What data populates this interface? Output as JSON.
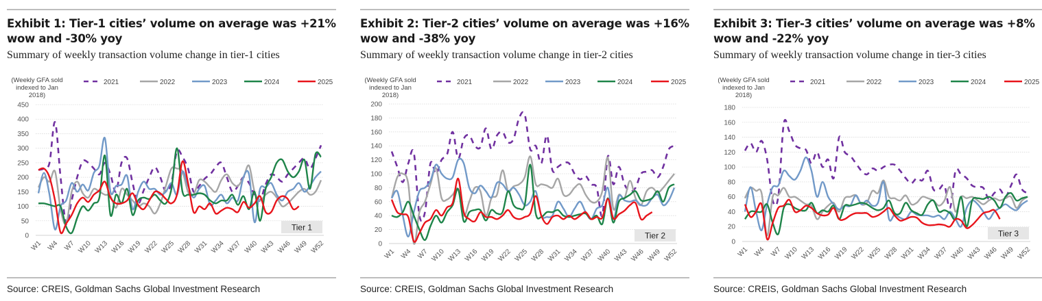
{
  "source": "Source: CREIS, Goldman Sachs Global Investment Research",
  "legend": [
    {
      "label": "2021",
      "color": "#7030a0",
      "dash": true
    },
    {
      "label": "2022",
      "color": "#a6a6a6",
      "dash": false
    },
    {
      "label": "2023",
      "color": "#7199c8",
      "dash": false
    },
    {
      "label": "2024",
      "color": "#1e8449",
      "dash": false
    },
    {
      "label": "2025",
      "color": "#e8141b",
      "dash": false
    }
  ],
  "y_label_lines": [
    "(Weekly GFA sold",
    "indexed to Jan",
    "2018)"
  ],
  "chart_data": [
    {
      "type": "line",
      "title": "Exhibit 1: Tier-1 cities’ volume on average was +21% wow and -30% yoy",
      "subtitle": "Summary of weekly transaction volume change in tier-1 cities",
      "tier_label": "Tier 1",
      "ylim": [
        0,
        450
      ],
      "yticks": [
        0,
        50,
        100,
        150,
        200,
        250,
        300,
        350,
        400,
        450
      ],
      "xticks": [
        "W1",
        "W4",
        "W7",
        "W10",
        "W13",
        "W16",
        "W19",
        "W22",
        "W25",
        "W28",
        "W31",
        "W34",
        "W37",
        "W40",
        "W43",
        "W46",
        "W49",
        "W52"
      ],
      "x": "W1..W52",
      "series": [
        {
          "name": "2021",
          "values": [
            225,
            230,
            250,
            390,
            200,
            40,
            120,
            200,
            255,
            250,
            230,
            210,
            250,
            210,
            150,
            250,
            265,
            180,
            110,
            155,
            200,
            235,
            200,
            150,
            180,
            290,
            270,
            230,
            150,
            170,
            195,
            210,
            235,
            250,
            200,
            150,
            170,
            200,
            180,
            140,
            120,
            175,
            210,
            200,
            185,
            210,
            230,
            250,
            265,
            230,
            265,
            310
          ]
        },
        {
          "name": "2022",
          "values": [
            165,
            200,
            185,
            220,
            90,
            40,
            150,
            185,
            145,
            130,
            160,
            150,
            140,
            135,
            95,
            160,
            140,
            120,
            100,
            110,
            100,
            75,
            110,
            170,
            230,
            230,
            220,
            150,
            140,
            190,
            185,
            165,
            150,
            190,
            210,
            180,
            170,
            200,
            240,
            150,
            120,
            140,
            150,
            130,
            100,
            110,
            130,
            150,
            160,
            140,
            150,
            190
          ]
        },
        {
          "name": "2023",
          "values": [
            145,
            215,
            140,
            20,
            100,
            120,
            180,
            150,
            175,
            155,
            215,
            240,
            335,
            150,
            170,
            175,
            205,
            90,
            150,
            185,
            160,
            160,
            140,
            150,
            180,
            140,
            220,
            170,
            130,
            160,
            170,
            105,
            120,
            140,
            110,
            130,
            120,
            200,
            210,
            45,
            160,
            165,
            180,
            140,
            120,
            150,
            160,
            180,
            150,
            170,
            200,
            220
          ]
        },
        {
          "name": "2024",
          "values": [
            110,
            110,
            105,
            100,
            100,
            30,
            8,
            60,
            100,
            85,
            110,
            130,
            275,
            70,
            140,
            110,
            160,
            70,
            120,
            130,
            125,
            140,
            120,
            110,
            160,
            300,
            150,
            140,
            140,
            145,
            140,
            120,
            110,
            120,
            120,
            140,
            105,
            135,
            90,
            150,
            50,
            160,
            200,
            250,
            260,
            220,
            200,
            220,
            260,
            160,
            280,
            270
          ]
        },
        {
          "name": "2025",
          "values": [
            225,
            230,
            200,
            120,
            10,
            40,
            70,
            110,
            130,
            115,
            140,
            155,
            185,
            130,
            110,
            110,
            120,
            145,
            105,
            90,
            120,
            150,
            145,
            125,
            110,
            140,
            255,
            180,
            80,
            100,
            90,
            110,
            75,
            85,
            95,
            90,
            80,
            115,
            95,
            110,
            135,
            80,
            80,
            120,
            135,
            125,
            90,
            100
          ]
        }
      ]
    },
    {
      "type": "line",
      "title": "Exhibit 2: Tier-2 cities’ volume on average was +16% wow and -38% yoy",
      "subtitle": "Summary of weekly transaction volume change in tier-2 cities",
      "tier_label": "Tier 2",
      "ylim": [
        0,
        200
      ],
      "yticks": [
        0,
        20,
        40,
        60,
        80,
        100,
        120,
        140,
        160,
        180,
        200
      ],
      "xticks": [
        "W1",
        "W4",
        "W7",
        "W10",
        "W13",
        "W16",
        "W19",
        "W22",
        "W25",
        "W28",
        "W31",
        "W34",
        "W37",
        "W40",
        "W43",
        "W46",
        "W49",
        "W52"
      ],
      "x": "W1..W52",
      "series": [
        {
          "name": "2021",
          "values": [
            132,
            110,
            88,
            115,
            130,
            40,
            45,
            115,
            100,
            120,
            128,
            160,
            122,
            150,
            155,
            140,
            138,
            165,
            135,
            155,
            160,
            145,
            150,
            180,
            185,
            135,
            140,
            115,
            155,
            105,
            110,
            115,
            115,
            100,
            92,
            97,
            85,
            80,
            40,
            125,
            85,
            110,
            85,
            75,
            80,
            100,
            103,
            105,
            95,
            110,
            135,
            140
          ]
        },
        {
          "name": "2022",
          "values": [
            65,
            95,
            100,
            85,
            0,
            45,
            60,
            85,
            108,
            65,
            63,
            70,
            78,
            40,
            60,
            80,
            75,
            40,
            65,
            70,
            105,
            75,
            82,
            85,
            95,
            125,
            85,
            85,
            83,
            80,
            93,
            70,
            70,
            80,
            85,
            70,
            60,
            60,
            75,
            123,
            50,
            70,
            65,
            90,
            65,
            55,
            75,
            80,
            73,
            80,
            90,
            100
          ]
        },
        {
          "name": "2023",
          "values": [
            65,
            75,
            40,
            10,
            45,
            75,
            80,
            90,
            113,
            100,
            93,
            95,
            120,
            115,
            80,
            72,
            83,
            75,
            66,
            87,
            85,
            75,
            80,
            70,
            55,
            60,
            75,
            40,
            38,
            40,
            60,
            50,
            38,
            50,
            60,
            45,
            35,
            50,
            55,
            80,
            35,
            68,
            62,
            60,
            62,
            55,
            55,
            65,
            70,
            55,
            62,
            80
          ]
        },
        {
          "name": "2024",
          "values": [
            40,
            38,
            45,
            60,
            40,
            20,
            5,
            25,
            40,
            30,
            45,
            55,
            78,
            32,
            45,
            48,
            48,
            33,
            48,
            43,
            45,
            75,
            55,
            50,
            55,
            113,
            43,
            38,
            45,
            45,
            48,
            40,
            38,
            40,
            42,
            43,
            35,
            40,
            28,
            65,
            30,
            60,
            65,
            70,
            75,
            62,
            62,
            65,
            75,
            60,
            80,
            85
          ]
        },
        {
          "name": "2025",
          "values": [
            63,
            45,
            42,
            38,
            3,
            15,
            30,
            35,
            48,
            40,
            52,
            58,
            93,
            45,
            35,
            32,
            45,
            38,
            38,
            35,
            40,
            48,
            38,
            35,
            38,
            43,
            68,
            40,
            28,
            38,
            40,
            35,
            40,
            35,
            40,
            45,
            35,
            38,
            37,
            64,
            36,
            42,
            47,
            55,
            58,
            35,
            40,
            45
          ]
        }
      ]
    },
    {
      "type": "line",
      "title": "Exhibit 3: Tier-3 cities’ volume on average was +8% wow and -22% yoy",
      "subtitle": "Summary of weekly transaction volume change in tier-3 cities",
      "tier_label": "Tier 3",
      "ylim": [
        0,
        180
      ],
      "yticks": [
        0,
        20,
        40,
        60,
        80,
        100,
        120,
        140,
        160,
        180
      ],
      "xticks": [
        "W1",
        "W4",
        "W7",
        "W10",
        "W13",
        "W16",
        "W19",
        "W22",
        "W25",
        "W28",
        "W31",
        "W34",
        "W37",
        "W40",
        "W43",
        "W46",
        "W49",
        "W52"
      ],
      "x": "W1..W52",
      "series": [
        {
          "name": "2021",
          "values": [
            122,
            132,
            120,
            135,
            110,
            55,
            60,
            158,
            148,
            130,
            125,
            123,
            105,
            120,
            100,
            110,
            85,
            140,
            120,
            115,
            105,
            95,
            90,
            98,
            95,
            100,
            103,
            103,
            95,
            85,
            78,
            85,
            82,
            95,
            70,
            70,
            75,
            45,
            95,
            90,
            85,
            75,
            73,
            72,
            57,
            65,
            70,
            60,
            75,
            90,
            70,
            65
          ]
        },
        {
          "name": "2022",
          "values": [
            58,
            72,
            68,
            65,
            8,
            60,
            62,
            72,
            60,
            60,
            55,
            50,
            48,
            30,
            40,
            48,
            52,
            40,
            58,
            60,
            62,
            50,
            52,
            68,
            65,
            82,
            60,
            58,
            55,
            62,
            50,
            52,
            60,
            58,
            55,
            48,
            55,
            73,
            40,
            60,
            58,
            60,
            55,
            50,
            55,
            58,
            55,
            58,
            60,
            45,
            55,
            60
          ]
        },
        {
          "name": "2023",
          "values": [
            40,
            73,
            40,
            15,
            50,
            73,
            75,
            95,
            88,
            83,
            95,
            113,
            95,
            60,
            80,
            60,
            50,
            43,
            48,
            48,
            62,
            50,
            55,
            48,
            52,
            80,
            30,
            36,
            32,
            30,
            40,
            36,
            35,
            35,
            33,
            35,
            30,
            40,
            30,
            20,
            45,
            55,
            50,
            40,
            30,
            40,
            45,
            50,
            45,
            42,
            50,
            55
          ]
        },
        {
          "name": "2024",
          "values": [
            30,
            40,
            40,
            40,
            50,
            25,
            10,
            45,
            50,
            45,
            42,
            42,
            52,
            38,
            42,
            40,
            48,
            30,
            48,
            48,
            50,
            52,
            50,
            45,
            42,
            45,
            55,
            38,
            38,
            52,
            42,
            38,
            36,
            50,
            55,
            40,
            42,
            38,
            30,
            60,
            20,
            55,
            58,
            57,
            60,
            55,
            45,
            60,
            65,
            55,
            58,
            60
          ]
        },
        {
          "name": "2025",
          "values": [
            50,
            33,
            40,
            50,
            3,
            25,
            45,
            48,
            56,
            40,
            42,
            48,
            45,
            38,
            35,
            36,
            45,
            30,
            30,
            35,
            38,
            38,
            38,
            33,
            35,
            40,
            45,
            35,
            28,
            30,
            33,
            32,
            25,
            22,
            22,
            23,
            22,
            20,
            30,
            28,
            18,
            22,
            30,
            38,
            40,
            42,
            30
          ]
        }
      ]
    }
  ]
}
